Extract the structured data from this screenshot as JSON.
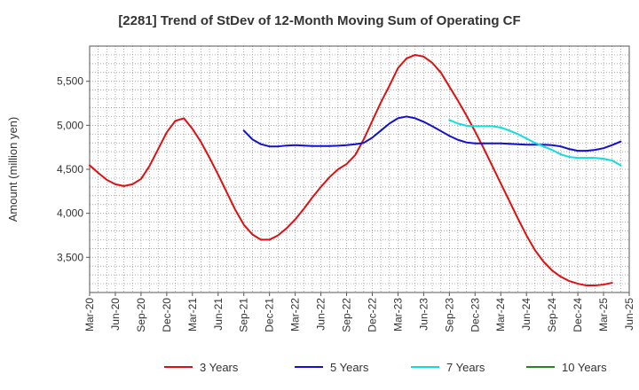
{
  "chart_data": {
    "type": "line",
    "title": "[2281]  Trend of StDev of 12-Month Moving Sum of Operating CF",
    "xlabel": "",
    "ylabel": "Amount (million yen)",
    "ylim": [
      3100,
      5900
    ],
    "yticks": [
      3500,
      4000,
      4500,
      5000,
      5500
    ],
    "ytick_labels": [
      "3,500",
      "4,000",
      "4,500",
      "5,000",
      "5,500"
    ],
    "xtick_labels": [
      "Mar-20",
      "Jun-20",
      "Sep-20",
      "Dec-20",
      "Mar-21",
      "Jun-21",
      "Sep-21",
      "Dec-21",
      "Mar-22",
      "Jun-22",
      "Sep-22",
      "Dec-22",
      "Mar-23",
      "Jun-23",
      "Sep-23",
      "Dec-23",
      "Mar-24",
      "Jun-24",
      "Sep-24",
      "Dec-24",
      "Mar-25",
      "Jun-25"
    ],
    "x_start": "Mar-20",
    "x_months": 63,
    "grid": true,
    "legend_position": "bottom",
    "series": [
      {
        "name": "3 Years",
        "color": "#dd1111",
        "start_month_index": 0,
        "values": [
          4545,
          4460,
          4380,
          4330,
          4310,
          4330,
          4390,
          4540,
          4730,
          4920,
          5050,
          5080,
          4960,
          4810,
          4630,
          4440,
          4240,
          4040,
          3870,
          3760,
          3700,
          3700,
          3750,
          3830,
          3930,
          4050,
          4180,
          4300,
          4410,
          4500,
          4560,
          4660,
          4840,
          5050,
          5260,
          5450,
          5650,
          5760,
          5800,
          5780,
          5710,
          5600,
          5440,
          5280,
          5110,
          4930,
          4740,
          4540,
          4340,
          4140,
          3940,
          3750,
          3580,
          3450,
          3350,
          3280,
          3230,
          3200,
          3180,
          3180,
          3190,
          3210
        ]
      },
      {
        "name": "5 Years",
        "color": "#1111cc",
        "start_month_index": 18,
        "values": [
          4940,
          4840,
          4785,
          4760,
          4760,
          4770,
          4775,
          4770,
          4765,
          4765,
          4765,
          4768,
          4775,
          4785,
          4800,
          4860,
          4940,
          5020,
          5080,
          5100,
          5080,
          5040,
          4990,
          4935,
          4880,
          4835,
          4805,
          4795,
          4795,
          4795,
          4795,
          4790,
          4785,
          4780,
          4780,
          4780,
          4775,
          4760,
          4730,
          4710,
          4710,
          4720,
          4740,
          4775,
          4815
        ]
      },
      {
        "name": "7 Years",
        "color": "#11dddd",
        "start_month_index": 42,
        "values": [
          5060,
          5020,
          4995,
          4990,
          4990,
          4990,
          4975,
          4940,
          4900,
          4850,
          4800,
          4760,
          4720,
          4670,
          4640,
          4630,
          4630,
          4630,
          4620,
          4600,
          4545
        ]
      },
      {
        "name": "10 Years",
        "color": "#228822",
        "start_month_index": 0,
        "values": []
      }
    ]
  }
}
